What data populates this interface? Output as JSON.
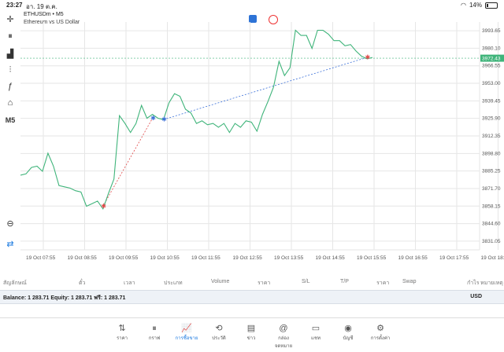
{
  "status_bar": {
    "time": "23:27",
    "date": "อา. 19 ต.ค.",
    "battery": "14%"
  },
  "toolbar": {
    "items": [
      {
        "name": "crosshair-icon",
        "glyph": "✛"
      },
      {
        "name": "candles-icon",
        "glyph": "⏸"
      },
      {
        "name": "bar-chart-icon",
        "glyph": "▟"
      },
      {
        "name": "indicators-icon",
        "glyph": "⫶"
      },
      {
        "name": "function-icon",
        "glyph": "ƒ"
      },
      {
        "name": "shapes-icon",
        "glyph": "⌂"
      },
      {
        "name": "timeframe",
        "glyph": "M5"
      }
    ],
    "bottom_items": [
      {
        "name": "zoom-icon",
        "glyph": "⊖"
      },
      {
        "name": "trade-icon",
        "glyph": "⇄"
      }
    ]
  },
  "chart_header": {
    "symbol": "ETHUSDm • M5",
    "description": "Ethereum vs US Dollar"
  },
  "chart_data": {
    "type": "line",
    "current_price": "3972.43",
    "y_ticks": [
      "3993.65",
      "3980.10",
      "3966.55",
      "3953.00",
      "3939.45",
      "3925.90",
      "3912.35",
      "3898.80",
      "3885.25",
      "3871.70",
      "3858.15",
      "3844.60",
      "3831.05"
    ],
    "ylim": [
      3824.3,
      4000.4
    ],
    "x_ticks": [
      "19 Oct 07:55",
      "19 Oct 08:55",
      "19 Oct 09:55",
      "19 Oct 10:55",
      "19 Oct 11:55",
      "19 Oct 12:55",
      "19 Oct 13:55",
      "19 Oct 14:55",
      "19 Oct 15:55",
      "19 Oct 16:55",
      "19 Oct 17:55",
      "19 Oct 18:55"
    ],
    "series": [
      {
        "values": [
          3882,
          3883,
          3888,
          3889,
          3885,
          3899,
          3889,
          3874,
          3873,
          3872,
          3870,
          3869,
          3858,
          3860,
          3862,
          3856,
          3868,
          3879,
          3928,
          3922,
          3915,
          3922,
          3936,
          3926,
          3929,
          3926,
          3925,
          3938,
          3945,
          3943,
          3933,
          3930,
          3922,
          3924,
          3921,
          3922,
          3919,
          3922,
          3915,
          3922,
          3919,
          3924,
          3923,
          3916,
          3929,
          3939,
          3950,
          3970,
          3959,
          3965,
          3994,
          3990,
          3990,
          3980,
          3994,
          3994,
          3991,
          3986,
          3986,
          3982,
          3983,
          3978,
          3974,
          3972,
          3973
        ]
      }
    ],
    "trades": [
      {
        "entry": 3858,
        "exit": 3926,
        "type": "sell"
      },
      {
        "entry": 3925,
        "exit": 3973,
        "type": "sell"
      }
    ]
  },
  "positions_header": {
    "columns": [
      "สัญลักษณ์",
      "ตั๋ว",
      "เวลา",
      "ประเภท",
      "Volume",
      "ราคา",
      "S/L",
      "T/P",
      "ราคา",
      "Swap",
      "กำไร",
      "หมายเหตุ"
    ]
  },
  "balance": {
    "text": "Balance: 1 283.71 Equity: 1 283.71 ฟรี: 1 283.71",
    "currency": "USD"
  },
  "tabs": [
    {
      "name": "quotes",
      "label": "ราคา",
      "icon": "⇅",
      "active": false
    },
    {
      "name": "chart",
      "label": "กราฟ",
      "icon": "⏸",
      "active": false
    },
    {
      "name": "trade",
      "label": "การซื้อขาย",
      "icon": "📈",
      "active": true
    },
    {
      "name": "history",
      "label": "ประวัติ",
      "icon": "⟲",
      "active": false
    },
    {
      "name": "news",
      "label": "ข่าว",
      "icon": "▤",
      "active": false
    },
    {
      "name": "mailbox",
      "label": "กล่องจดหมาย",
      "icon": "@",
      "active": false
    },
    {
      "name": "chat",
      "label": "แชท",
      "icon": "▭",
      "active": false
    },
    {
      "name": "accounts",
      "label": "บัญชี",
      "icon": "◉",
      "active": false
    },
    {
      "name": "settings",
      "label": "การตั้งค่า",
      "icon": "⚙",
      "active": false
    }
  ]
}
